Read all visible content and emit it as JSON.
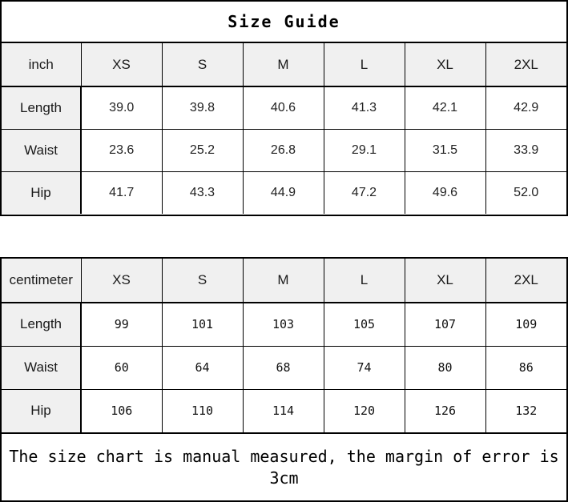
{
  "page": {
    "title": "Size Guide"
  },
  "chart_data": [
    {
      "type": "table",
      "unit": "inch",
      "columns": [
        "inch",
        "XS",
        "S",
        "M",
        "L",
        "XL",
        "2XL"
      ],
      "rows": [
        {
          "label": "Length",
          "values": [
            "39.0",
            "39.8",
            "40.6",
            "41.3",
            "42.1",
            "42.9"
          ]
        },
        {
          "label": "Waist",
          "values": [
            "23.6",
            "25.2",
            "26.8",
            "29.1",
            "31.5",
            "33.9"
          ]
        },
        {
          "label": "Hip",
          "values": [
            "41.7",
            "43.3",
            "44.9",
            "47.2",
            "49.6",
            "52.0"
          ]
        }
      ]
    },
    {
      "type": "table",
      "unit": "centimeter",
      "columns": [
        "centimeter",
        "XS",
        "S",
        "M",
        "L",
        "XL",
        "2XL"
      ],
      "rows": [
        {
          "label": "Length",
          "values": [
            "99",
            "101",
            "103",
            "105",
            "107",
            "109"
          ]
        },
        {
          "label": "Waist",
          "values": [
            "60",
            "64",
            "68",
            "74",
            "80",
            "86"
          ]
        },
        {
          "label": "Hip",
          "values": [
            "106",
            "110",
            "114",
            "120",
            "126",
            "132"
          ]
        }
      ]
    }
  ],
  "footer": {
    "note": "The size chart is manual measured, the margin of error is 3cm",
    "lines": [
      "The size chart is manual measured, the margin of error is",
      "3cm"
    ]
  },
  "colors": {
    "header_bg": "#f0f0f0",
    "border": "#000000",
    "text": "#1a1a1a"
  }
}
